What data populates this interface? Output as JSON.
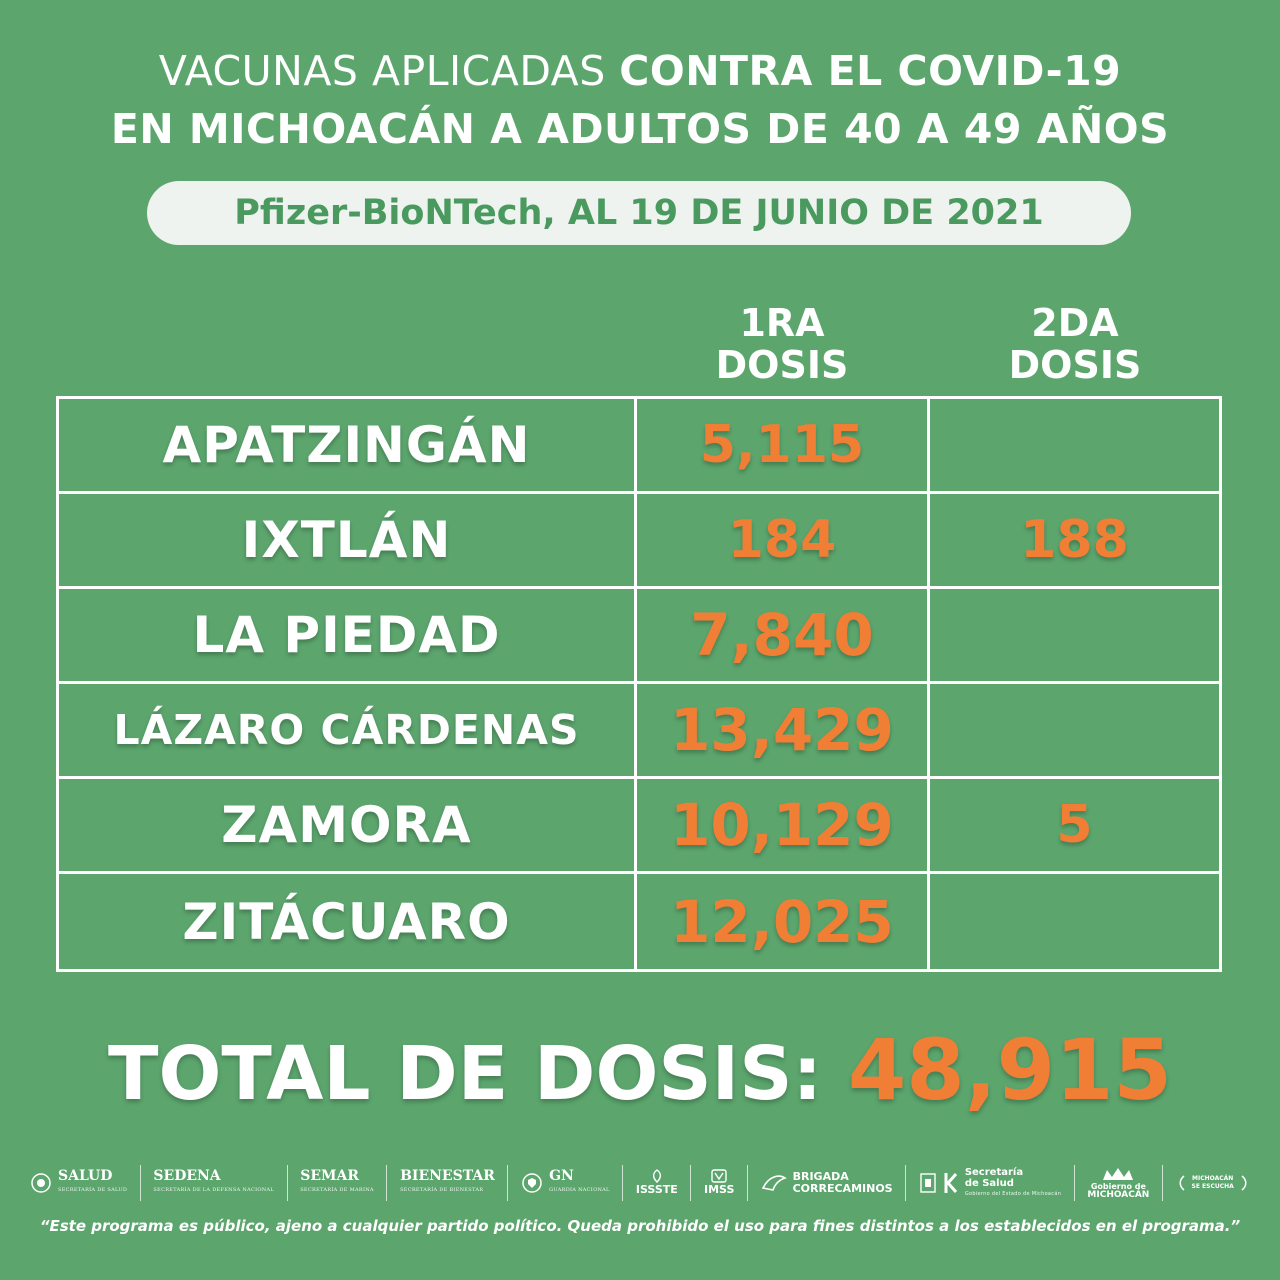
{
  "title": {
    "line1_a": "VACUNAS APLICADAS ",
    "line1_b": "CONTRA EL COVID-19",
    "line2": "EN MICHOACÁN A ADULTOS DE 40 A 49 AÑOS"
  },
  "subtitle": "Pfizer-BioNTech, AL 19 DE JUNIO DE 2021",
  "columns": {
    "first": [
      "1RA",
      "DOSIS"
    ],
    "second": [
      "2DA",
      "DOSIS"
    ]
  },
  "rows": [
    {
      "municipio": "APATZINGÁN",
      "dosis1": "5,115",
      "dosis2": ""
    },
    {
      "municipio": "IXTLÁN",
      "dosis1": "184",
      "dosis2": "188"
    },
    {
      "municipio": "LA PIEDAD",
      "dosis1": "7,840",
      "dosis2": ""
    },
    {
      "municipio": "LÁZARO CÁRDENAS",
      "dosis1": "13,429",
      "dosis2": ""
    },
    {
      "municipio": "ZAMORA",
      "dosis1": "10,129",
      "dosis2": "5"
    },
    {
      "municipio": "ZITÁCUARO",
      "dosis1": "12,025",
      "dosis2": ""
    }
  ],
  "total": {
    "label": "TOTAL DE DOSIS: ",
    "value": "48,915"
  },
  "logos": {
    "salud": "SALUD",
    "salud_sub": "SECRETARÍA DE SALUD",
    "sedena": "SEDENA",
    "sedena_sub": "SECRETARÍA DE LA DEFENSA NACIONAL",
    "semar": "SEMAR",
    "semar_sub": "SECRETARÍA DE MARINA",
    "bienestar": "BIENESTAR",
    "bienestar_sub": "SECRETARÍA DE BIENESTAR",
    "gn": "GN",
    "gn_sub": "GUARDIA NACIONAL",
    "issste": "ISSSTE",
    "imss": "IMSS",
    "brigada1": "BRIGADA",
    "brigada2": "CORRECAMINOS",
    "secsalud1": "Secretaría",
    "secsalud2": "de Salud",
    "secsalud_sub": "Gobierno del Estado de Michoacán",
    "gob1": "Gobierno de",
    "gob2": "MICHOACÁN",
    "escucha1": "MICHOACÁN",
    "escucha2": "SE ESCUCHA"
  },
  "disclaimer": "“Este programa es público, ajeno a cualquier partido político. Queda prohibido el uso para fines distintos a los establecidos en el programa.”",
  "colors": {
    "background": "#5ca66e",
    "accent": "#f07f35",
    "pill": "#eef3ef"
  }
}
